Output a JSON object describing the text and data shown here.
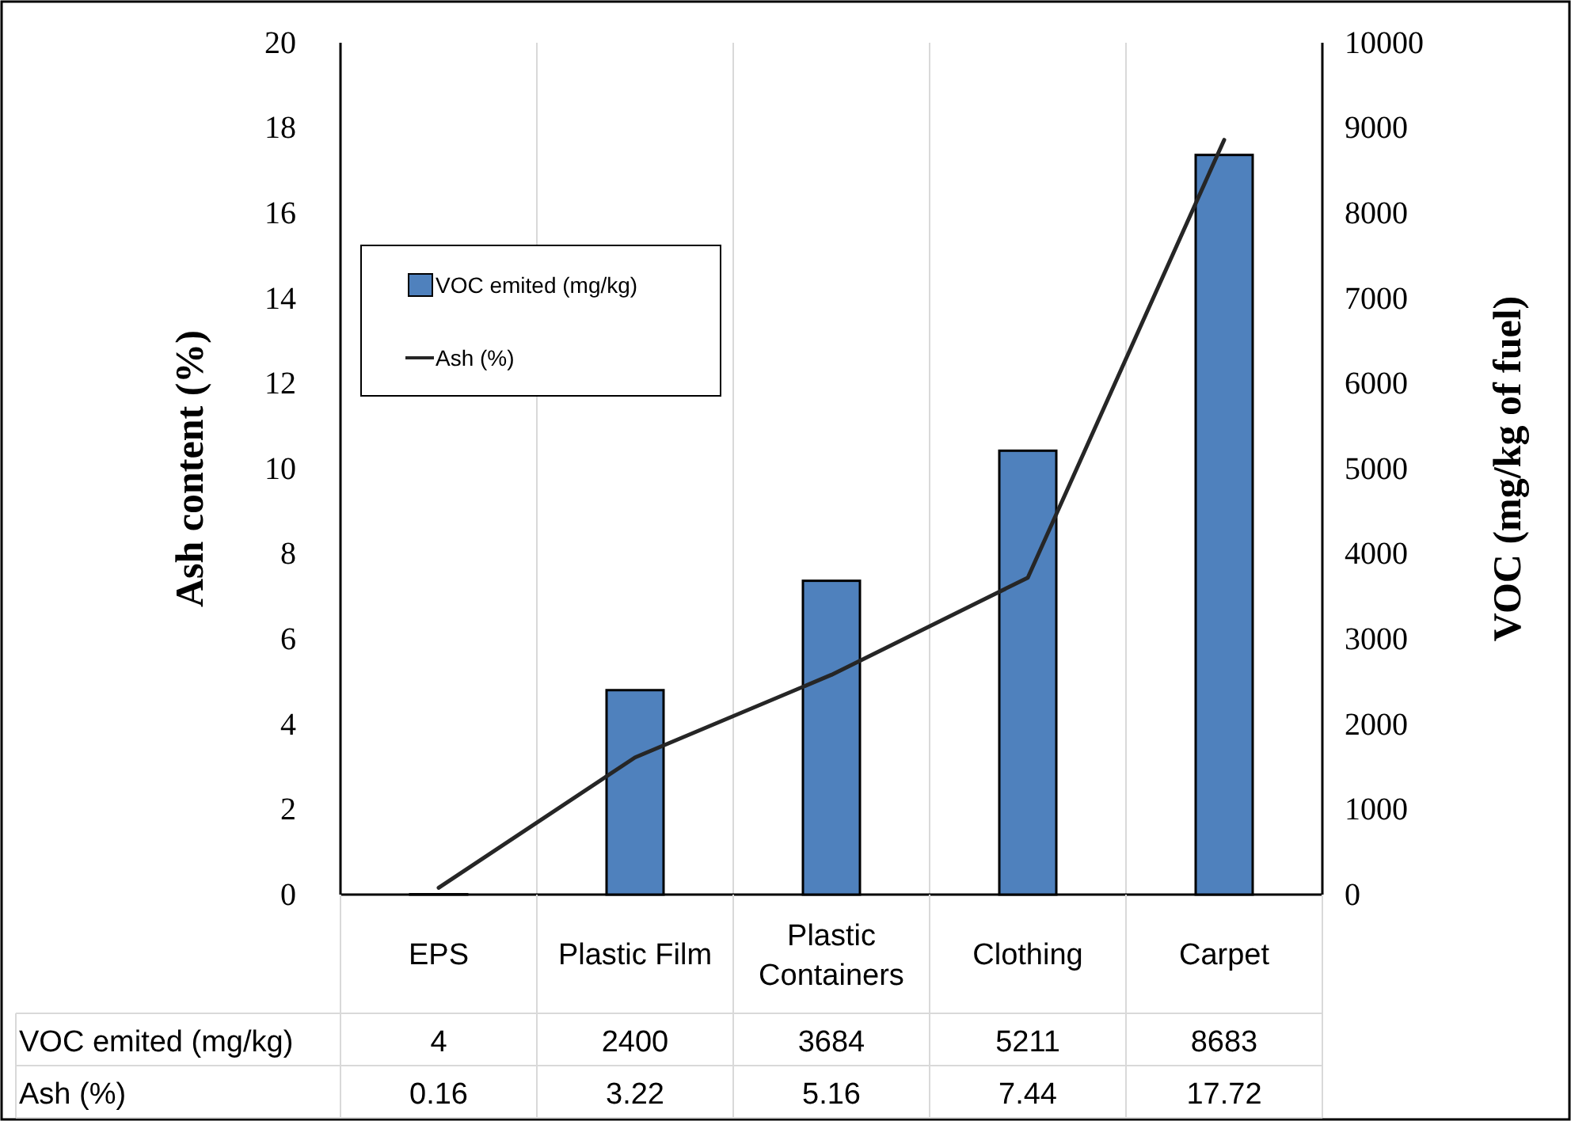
{
  "chart_data": {
    "type": "bar",
    "categories": [
      "EPS",
      "Plastic Film",
      "Plastic Containers",
      "Clothing",
      "Carpet"
    ],
    "series": [
      {
        "name": "VOC emited (mg/kg)",
        "axis": "y2",
        "color": "#4f81bd",
        "values": [
          4,
          2400,
          3684,
          5211,
          8683
        ]
      },
      {
        "name": "Ash (%)",
        "type": "line",
        "color": "#262626",
        "values": [
          0.16,
          3.22,
          5.16,
          7.44,
          17.72
        ]
      }
    ],
    "ylabel": "Ash content (%)",
    "y2label": "VOC (mg/kg of fuel)",
    "ylim": [
      0,
      20
    ],
    "yticks": [
      0,
      2,
      4,
      6,
      8,
      10,
      12,
      14,
      16,
      18,
      20
    ],
    "y2lim": [
      0,
      10000
    ],
    "y2ticks": [
      0,
      1000,
      2000,
      3000,
      4000,
      5000,
      6000,
      7000,
      8000,
      9000,
      10000
    ],
    "grid": "x",
    "legend": "top left",
    "data_labels": true
  }
}
